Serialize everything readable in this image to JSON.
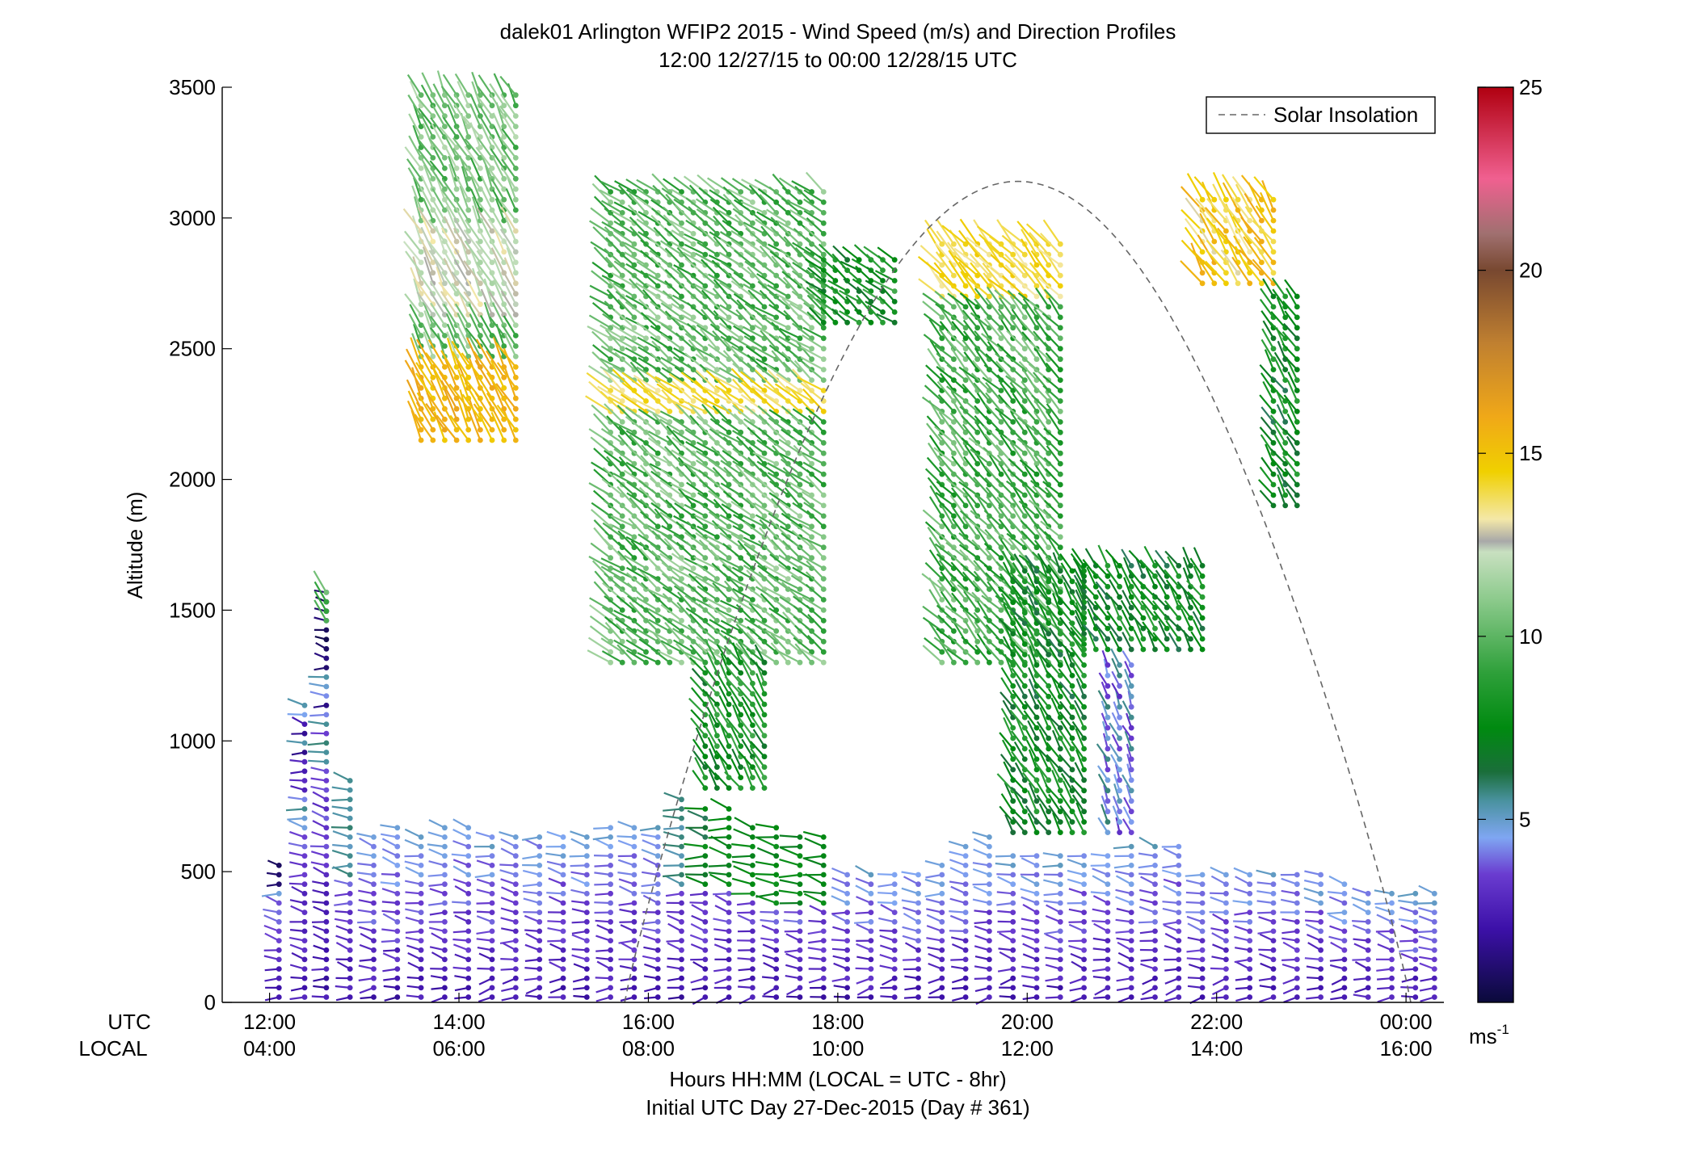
{
  "chart_data": {
    "type": "scatter",
    "title": "dalek01 Arlington WFIP2 2015 - Wind Speed (m/s) and Direction Profiles",
    "subtitle": "12:00 12/27/15 to 00:00 12/28/15  UTC",
    "ylabel": "Altitude (m)",
    "xlabel": "Hours HH:MM  (LOCAL = UTC - 8hr)",
    "xlabel2": "Initial UTC Day 27-Dec-2015 (Day # 361)",
    "utc_row_label": "UTC",
    "local_row_label": "LOCAL",
    "xlim_hours": [
      11.5,
      24.4
    ],
    "ylim": [
      0,
      3500
    ],
    "y_ticks": [
      "0",
      "500",
      "1000",
      "1500",
      "2000",
      "2500",
      "3000",
      "3500"
    ],
    "x_tick_hours": [
      12,
      14,
      16,
      18,
      20,
      22,
      24
    ],
    "x_ticks_utc": [
      "12:00",
      "14:00",
      "16:00",
      "18:00",
      "20:00",
      "22:00",
      "00:00"
    ],
    "x_ticks_local": [
      "04:00",
      "06:00",
      "08:00",
      "10:00",
      "12:00",
      "14:00",
      "16:00"
    ],
    "legend": {
      "label": "Solar Insolation",
      "position": "top-right",
      "line_color": "#666666"
    },
    "solar_insolation": {
      "start_hour": 15.75,
      "peak_hour": 19.9,
      "end_hour": 24.05,
      "peak_altitude": 3140
    },
    "colorbar": {
      "min": 0,
      "max": 25,
      "ticks": [
        "5",
        "10",
        "15",
        "20",
        "25"
      ],
      "unit_base": "ms",
      "unit_exp": "-1",
      "stops": [
        {
          "v": 0,
          "c": "#0a0a3a"
        },
        {
          "v": 2,
          "c": "#3c10a8"
        },
        {
          "v": 3.5,
          "c": "#6a3cd0"
        },
        {
          "v": 4.5,
          "c": "#7fa6f2"
        },
        {
          "v": 5.5,
          "c": "#4a92a0"
        },
        {
          "v": 6.3,
          "c": "#1a6e3a"
        },
        {
          "v": 7.5,
          "c": "#008a10"
        },
        {
          "v": 9,
          "c": "#2ea03a"
        },
        {
          "v": 11,
          "c": "#8cca8c"
        },
        {
          "v": 12.3,
          "c": "#c8e0c0"
        },
        {
          "v": 12.6,
          "c": "#a8a8a8"
        },
        {
          "v": 13.2,
          "c": "#f4e8a8"
        },
        {
          "v": 14.5,
          "c": "#f0d000"
        },
        {
          "v": 16,
          "c": "#f0a818"
        },
        {
          "v": 18,
          "c": "#c08030"
        },
        {
          "v": 20,
          "c": "#784830"
        },
        {
          "v": 21,
          "c": "#a07070"
        },
        {
          "v": 22.5,
          "c": "#f06090"
        },
        {
          "v": 25,
          "c": "#b00010"
        }
      ]
    },
    "profiles": [
      {
        "t": 12.1,
        "max_alt": 530,
        "top": [
          1,
          2
        ]
      },
      {
        "t": 12.37,
        "max_alt": 1170,
        "mid": [
          1,
          6
        ]
      },
      {
        "t": 12.6,
        "max_alt": 1570,
        "mid": [
          1,
          6
        ],
        "top": [
          1460,
          1570,
          11
        ]
      },
      {
        "t": 12.85,
        "max_alt": 860,
        "mid": [
          6,
          5
        ]
      },
      {
        "t": 13.1,
        "max_alt": 640
      },
      {
        "t": 13.35,
        "max_alt": 670
      },
      {
        "t": 13.6,
        "max_alt": 640
      },
      {
        "t": 13.85,
        "max_alt": 690
      },
      {
        "t": 14.1,
        "max_alt": 680
      },
      {
        "t": 14.35,
        "max_alt": 660
      },
      {
        "t": 14.6,
        "max_alt": 650
      },
      {
        "t": 14.85,
        "max_alt": 650
      },
      {
        "t": 15.1,
        "max_alt": 660
      },
      {
        "t": 15.35,
        "max_alt": 660
      },
      {
        "t": 15.6,
        "max_alt": 680
      },
      {
        "t": 15.85,
        "max_alt": 690
      },
      {
        "t": 16.1,
        "max_alt": 690
      },
      {
        "t": 16.35,
        "max_alt": 800,
        "mid": [
          5,
          6
        ]
      },
      {
        "t": 16.6,
        "max_alt": 770,
        "mid": [
          6,
          8
        ]
      },
      {
        "t": 16.85,
        "max_alt": 760,
        "mid": [
          7,
          8
        ]
      },
      {
        "t": 17.1,
        "max_alt": 700,
        "mid": [
          7,
          8
        ]
      },
      {
        "t": 17.35,
        "max_alt": 680,
        "mid": [
          7,
          8
        ]
      },
      {
        "t": 17.6,
        "max_alt": 640,
        "mid": [
          7,
          8
        ]
      },
      {
        "t": 17.85,
        "max_alt": 640,
        "mid": [
          7,
          8
        ]
      },
      {
        "t": 18.1,
        "max_alt": 520
      },
      {
        "t": 18.35,
        "max_alt": 520
      },
      {
        "t": 18.6,
        "max_alt": 520
      },
      {
        "t": 18.85,
        "max_alt": 520
      },
      {
        "t": 19.1,
        "max_alt": 530
      },
      {
        "t": 19.35,
        "max_alt": 600
      },
      {
        "t": 19.6,
        "max_alt": 640
      },
      {
        "t": 19.85,
        "max_alt": 560
      },
      {
        "t": 20.1,
        "max_alt": 560
      },
      {
        "t": 20.35,
        "max_alt": 560
      },
      {
        "t": 20.6,
        "max_alt": 580
      },
      {
        "t": 20.85,
        "max_alt": 590
      },
      {
        "t": 21.1,
        "max_alt": 600
      },
      {
        "t": 21.35,
        "max_alt": 600
      },
      {
        "t": 21.6,
        "max_alt": 610
      },
      {
        "t": 21.85,
        "max_alt": 520
      },
      {
        "t": 22.1,
        "max_alt": 520
      },
      {
        "t": 22.35,
        "max_alt": 510
      },
      {
        "t": 22.6,
        "max_alt": 510
      },
      {
        "t": 22.85,
        "max_alt": 510
      },
      {
        "t": 23.1,
        "max_alt": 490
      },
      {
        "t": 23.35,
        "max_alt": 470
      },
      {
        "t": 23.6,
        "max_alt": 440
      },
      {
        "t": 23.85,
        "max_alt": 420
      },
      {
        "t": 24.1,
        "max_alt": 420
      },
      {
        "t": 24.3,
        "max_alt": 430
      }
    ],
    "upper_regions": [
      {
        "t0": 13.6,
        "t1": 14.6,
        "y0": 2150,
        "y1": 3480,
        "speed": 10.5,
        "tail": 195,
        "bands": [
          {
            "y0": 2150,
            "y1": 2450,
            "speed": 15.5
          },
          {
            "y0": 2600,
            "y1": 2950,
            "speed": 12.4
          }
        ]
      },
      {
        "t0": 15.6,
        "t1": 17.85,
        "y0": 1300,
        "y1": 3100,
        "speed": 10,
        "tail": 220,
        "bands": [
          {
            "y0": 2250,
            "y1": 2350,
            "speed": 14
          }
        ]
      },
      {
        "t0": 16.6,
        "t1": 17.3,
        "y0": 820,
        "y1": 1300,
        "speed": 8,
        "tail": 200
      },
      {
        "t0": 17.85,
        "t1": 18.6,
        "y0": 2600,
        "y1": 2850,
        "speed": 8,
        "tail": 220
      },
      {
        "t0": 19.1,
        "t1": 20.35,
        "y0": 1300,
        "y1": 2900,
        "speed": 9.5,
        "tail": 210,
        "bands": [
          {
            "y0": 2700,
            "y1": 2900,
            "speed": 14
          }
        ]
      },
      {
        "t0": 19.85,
        "t1": 20.6,
        "y0": 650,
        "y1": 1650,
        "speed": 7.5,
        "tail": 200
      },
      {
        "t0": 20.6,
        "t1": 21.85,
        "y0": 1350,
        "y1": 1700,
        "speed": 7.5,
        "tail": 200
      },
      {
        "t0": 20.85,
        "t1": 21.1,
        "y0": 650,
        "y1": 1300,
        "speed": 4.5,
        "tail": 190
      },
      {
        "t0": 21.85,
        "t1": 22.6,
        "y0": 2750,
        "y1": 3100,
        "speed": 14.5,
        "tail": 200
      },
      {
        "t0": 22.6,
        "t1": 22.85,
        "y0": 1900,
        "y1": 2700,
        "speed": 7.5,
        "tail": 200
      }
    ]
  }
}
